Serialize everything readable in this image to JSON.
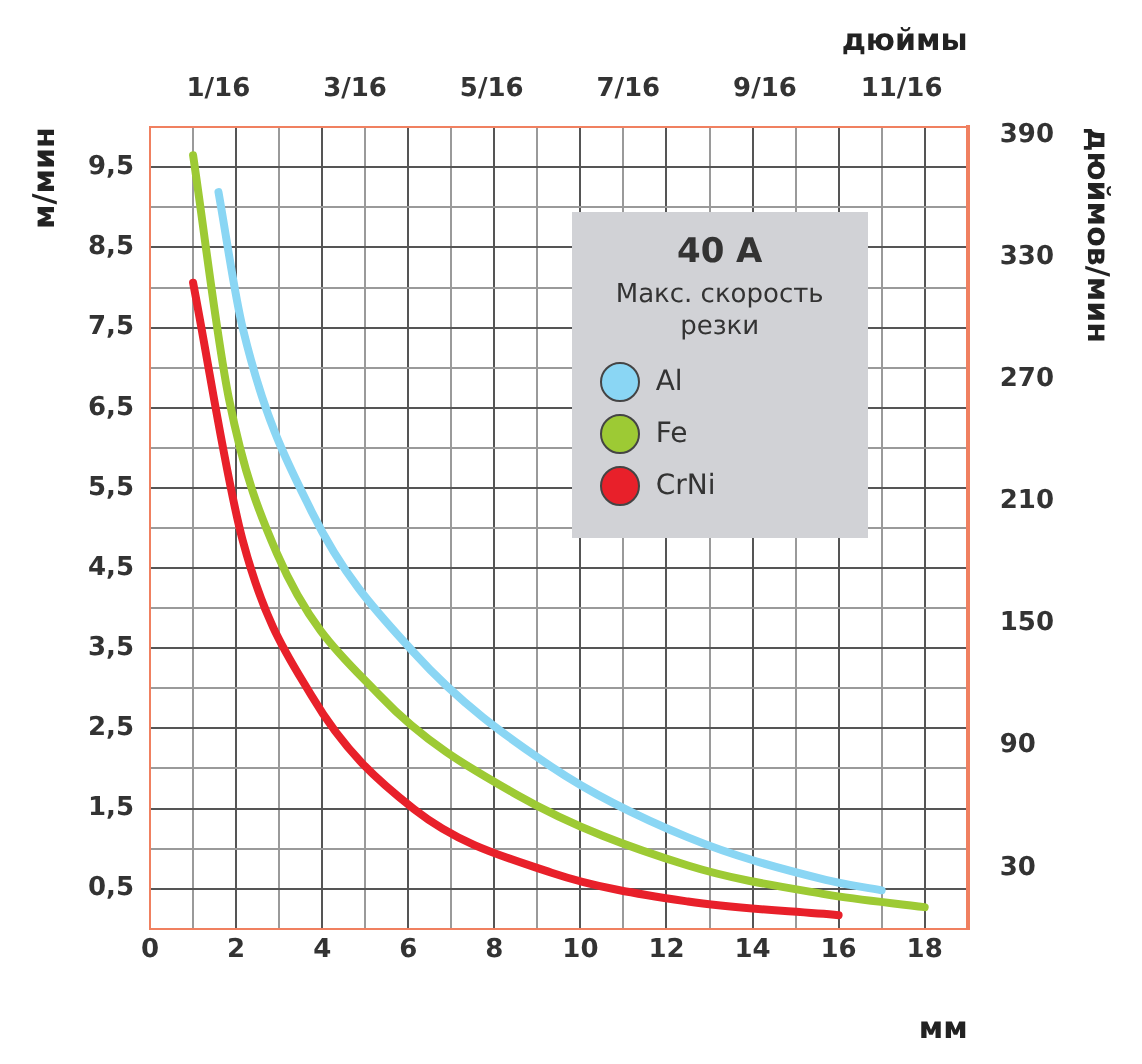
{
  "chart_data": {
    "type": "line",
    "title": "40 A",
    "subtitle": "Макс. скорость резки",
    "xlabel": "мм",
    "ylabel": "м/мин",
    "y2label": "дюймов/мин",
    "x2label": "дюймы",
    "xlim": [
      0,
      19
    ],
    "xticks": [
      0,
      {
        "value": 1,
        "label": null
      },
      2,
      {
        "value": 3,
        "label": null
      },
      4,
      {
        "value": 5,
        "label": null
      },
      6,
      {
        "value": 7,
        "label": null
      },
      8,
      {
        "value": 9,
        "label": null
      },
      10,
      {
        "value": 11,
        "label": null
      },
      12,
      {
        "value": 13,
        "label": null
      },
      14,
      {
        "value": 15,
        "label": null
      },
      16,
      {
        "value": 17,
        "label": null
      },
      18
    ],
    "ylim": [
      0,
      10
    ],
    "yticks": [
      {
        "value": 0.5,
        "label": "0,5"
      },
      {
        "value": 1,
        "label": null
      },
      {
        "value": 1.5,
        "label": "1,5"
      },
      {
        "value": 2,
        "label": null
      },
      {
        "value": 2.5,
        "label": "2,5"
      },
      {
        "value": 3,
        "label": null
      },
      {
        "value": 3.5,
        "label": "3,5"
      },
      {
        "value": 4,
        "label": null
      },
      {
        "value": 4.5,
        "label": "4,5"
      },
      {
        "value": 5,
        "label": null
      },
      {
        "value": 5.5,
        "label": "5,5"
      },
      {
        "value": 6,
        "label": null
      },
      {
        "value": 6.5,
        "label": "6,5"
      },
      {
        "value": 7,
        "label": null
      },
      {
        "value": 7.5,
        "label": "7,5"
      },
      {
        "value": 8,
        "label": null
      },
      {
        "value": 8.5,
        "label": "8,5"
      },
      {
        "value": 9,
        "label": null
      },
      {
        "value": 9.5,
        "label": "9,5"
      }
    ],
    "y2lim": [
      0,
      394
    ],
    "y2ticks": [
      30,
      90,
      150,
      210,
      270,
      330,
      390
    ],
    "x2lim": [
      0,
      0.748
    ],
    "x2ticks": [
      {
        "value": 0.0625,
        "label": "1/16"
      },
      {
        "value": 0.1875,
        "label": "3/16"
      },
      {
        "value": 0.3125,
        "label": "5/16"
      },
      {
        "value": 0.4375,
        "label": "7/16"
      },
      {
        "value": 0.5625,
        "label": "9/16"
      },
      {
        "value": 0.6875,
        "label": "11/16"
      }
    ],
    "grid": true,
    "legend": "top right",
    "marker": "none",
    "line_style": "solid",
    "series": [
      {
        "name": "Al",
        "color": "#8ad6f4",
        "x": [
          1.59,
          2.15,
          3.75,
          6.14,
          9.33,
          12.5,
          15.7,
          17.0
        ],
        "values": [
          9.19,
          7.5,
          5.21,
          3.44,
          2.02,
          1.14,
          0.61,
          0.48
        ]
      },
      {
        "name": "Fe",
        "color": "#9dca34",
        "x": [
          1.0,
          1.83,
          2.95,
          5.34,
          8.53,
          12.5,
          15.7,
          18.0
        ],
        "values": [
          9.65,
          6.62,
          4.68,
          2.91,
          1.67,
          0.79,
          0.43,
          0.27
        ]
      },
      {
        "name": "CrNi",
        "color": "#e8202a",
        "x": [
          1.0,
          2.15,
          3.75,
          6.14,
          9.33,
          12.5,
          16.0
        ],
        "values": [
          8.06,
          4.85,
          2.91,
          1.49,
          0.7,
          0.34,
          0.17
        ]
      }
    ]
  }
}
